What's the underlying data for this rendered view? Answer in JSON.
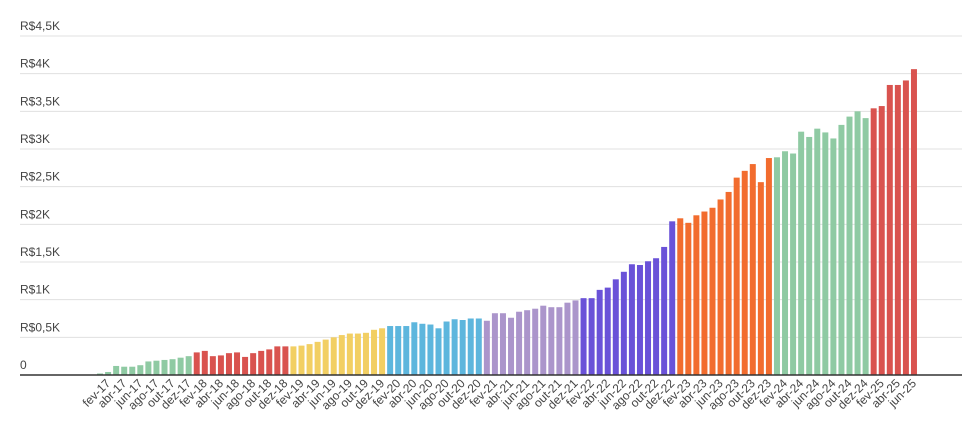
{
  "chart_data": {
    "type": "bar",
    "categories": [
      null,
      "fev-17",
      null,
      "abr-17",
      null,
      "jun-17",
      null,
      "ago-17",
      null,
      "out-17",
      null,
      "dez-17",
      null,
      "fev-18",
      null,
      "abr-18",
      null,
      "jun-18",
      null,
      "ago-18",
      null,
      "out-18",
      null,
      "dez-18",
      null,
      "fev-19",
      null,
      "abr-19",
      null,
      "jun-19",
      null,
      "ago-19",
      null,
      "out-19",
      null,
      "dez-19",
      null,
      "fev-20",
      null,
      "abr-20",
      null,
      "jun-20",
      null,
      "ago-20",
      null,
      "out-20",
      null,
      "dez-20",
      null,
      "fev-21",
      null,
      "abr-21",
      null,
      "jun-21",
      null,
      "ago-21",
      null,
      "out-21",
      null,
      "dez-21",
      null,
      "fev-22",
      null,
      "abr-22",
      null,
      "jun-22",
      null,
      "ago-22",
      null,
      "out-22",
      null,
      "dez-22",
      null,
      "fev-23",
      null,
      "abr-23",
      null,
      "jun-23",
      null,
      "ago-23",
      null,
      "out-23",
      null,
      "dez-23",
      null,
      "fev-24",
      null,
      "abr-24",
      null,
      "jun-24",
      null,
      "ago-24",
      null,
      "out-24",
      null,
      "dez-24",
      null,
      "fev-25",
      null,
      "abr-25",
      null,
      "jun-25"
    ],
    "values": [
      20,
      40,
      120,
      110,
      110,
      130,
      180,
      190,
      200,
      210,
      230,
      250,
      300,
      320,
      250,
      260,
      290,
      300,
      240,
      290,
      320,
      340,
      380,
      380,
      380,
      390,
      410,
      440,
      470,
      500,
      530,
      550,
      550,
      560,
      600,
      620,
      650,
      650,
      650,
      700,
      680,
      670,
      620,
      710,
      740,
      730,
      750,
      750,
      720,
      820,
      820,
      760,
      840,
      860,
      880,
      920,
      900,
      900,
      960,
      990,
      1020,
      1020,
      1130,
      1160,
      1270,
      1370,
      1470,
      1460,
      1510,
      1550,
      1700,
      2040,
      2080,
      2020,
      2120,
      2170,
      2220,
      2330,
      2430,
      2620,
      2710,
      2800,
      2560,
      2880,
      2890,
      2970,
      2940,
      3230,
      3160,
      3270,
      3220,
      3140,
      3320,
      3430,
      3500,
      3410,
      3540,
      3570,
      3850,
      3850,
      3910,
      4060
    ],
    "colors": [
      "#8fcaa3",
      "#8fcaa3",
      "#8fcaa3",
      "#8fcaa3",
      "#8fcaa3",
      "#8fcaa3",
      "#8fcaa3",
      "#8fcaa3",
      "#8fcaa3",
      "#8fcaa3",
      "#8fcaa3",
      "#8fcaa3",
      "#d9534f",
      "#d9534f",
      "#d9534f",
      "#d9534f",
      "#d9534f",
      "#d9534f",
      "#d9534f",
      "#d9534f",
      "#d9534f",
      "#d9534f",
      "#d9534f",
      "#d9534f",
      "#f2cf63",
      "#f2cf63",
      "#f2cf63",
      "#f2cf63",
      "#f2cf63",
      "#f2cf63",
      "#f2cf63",
      "#f2cf63",
      "#f2cf63",
      "#f2cf63",
      "#f2cf63",
      "#f2cf63",
      "#5db6dd",
      "#5db6dd",
      "#5db6dd",
      "#5db6dd",
      "#5db6dd",
      "#5db6dd",
      "#5db6dd",
      "#5db6dd",
      "#5db6dd",
      "#5db6dd",
      "#5db6dd",
      "#5db6dd",
      "#ab95cb",
      "#ab95cb",
      "#ab95cb",
      "#ab95cb",
      "#ab95cb",
      "#ab95cb",
      "#ab95cb",
      "#ab95cb",
      "#ab95cb",
      "#ab95cb",
      "#ab95cb",
      "#ab95cb",
      "#6a52d8",
      "#6a52d8",
      "#6a52d8",
      "#6a52d8",
      "#6a52d8",
      "#6a52d8",
      "#6a52d8",
      "#6a52d8",
      "#6a52d8",
      "#6a52d8",
      "#6a52d8",
      "#6a52d8",
      "#f26c2e",
      "#f26c2e",
      "#f26c2e",
      "#f26c2e",
      "#f26c2e",
      "#f26c2e",
      "#f26c2e",
      "#f26c2e",
      "#f26c2e",
      "#f26c2e",
      "#f26c2e",
      "#f26c2e",
      "#8fcaa3",
      "#8fcaa3",
      "#8fcaa3",
      "#8fcaa3",
      "#8fcaa3",
      "#8fcaa3",
      "#8fcaa3",
      "#8fcaa3",
      "#8fcaa3",
      "#8fcaa3",
      "#8fcaa3",
      "#8fcaa3",
      "#d9534f",
      "#d9534f",
      "#d9534f",
      "#d9534f",
      "#d9534f",
      "#d9534f"
    ],
    "ylim": [
      0,
      4500
    ],
    "yticks": [
      {
        "value": 0,
        "label": "0"
      },
      {
        "value": 500,
        "label": "R$0,5K"
      },
      {
        "value": 1000,
        "label": "R$1K"
      },
      {
        "value": 1500,
        "label": "R$1,5K"
      },
      {
        "value": 2000,
        "label": "R$2K"
      },
      {
        "value": 2500,
        "label": "R$2,5K"
      },
      {
        "value": 3000,
        "label": "R$3K"
      },
      {
        "value": 3500,
        "label": "R$3,5K"
      },
      {
        "value": 4000,
        "label": "R$4K"
      },
      {
        "value": 4500,
        "label": "R$4,5K"
      }
    ],
    "grid": true
  }
}
